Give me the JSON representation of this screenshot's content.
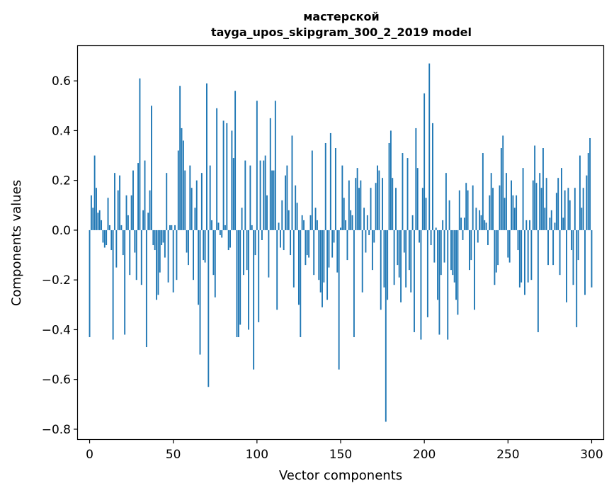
{
  "chart_data": {
    "type": "bar",
    "title": "мастерской",
    "subtitle": "tayga_upos_skipgram_300_2_2019 model",
    "xlabel": "Vector components",
    "ylabel": "Components values",
    "xlim": [
      -7,
      307
    ],
    "ylim": [
      -0.84,
      0.74
    ],
    "xticks": [
      0,
      50,
      100,
      150,
      200,
      250,
      300
    ],
    "yticks": [
      -0.8,
      -0.6,
      -0.4,
      -0.2,
      0.0,
      0.2,
      0.4,
      0.6
    ],
    "ytick_labels": [
      "−0.8",
      "−0.6",
      "−0.4",
      "−0.2",
      "0.0",
      "0.2",
      "0.4",
      "0.6"
    ],
    "bar_color": "#1f77b4",
    "grid": false,
    "values": [
      -0.43,
      0.14,
      0.09,
      0.3,
      0.17,
      0.07,
      0.08,
      0.04,
      -0.05,
      -0.07,
      -0.06,
      0.13,
      0.02,
      -0.08,
      -0.44,
      0.23,
      -0.15,
      0.16,
      0.22,
      0.02,
      -0.1,
      -0.42,
      0.14,
      0.06,
      -0.18,
      0.14,
      0.24,
      -0.09,
      -0.2,
      0.27,
      0.61,
      -0.22,
      0.08,
      0.28,
      -0.47,
      0.07,
      0.16,
      0.5,
      -0.06,
      -0.08,
      -0.28,
      -0.26,
      -0.17,
      -0.06,
      -0.05,
      -0.11,
      0.23,
      -0.21,
      0.02,
      0.02,
      -0.25,
      0.02,
      -0.2,
      0.32,
      0.58,
      0.41,
      0.36,
      0.24,
      -0.09,
      -0.14,
      0.26,
      0.17,
      -0.2,
      0.09,
      0.2,
      -0.3,
      -0.5,
      0.23,
      -0.12,
      -0.13,
      0.59,
      -0.63,
      0.26,
      0.04,
      -0.18,
      -0.27,
      0.49,
      0.03,
      -0.02,
      -0.03,
      0.44,
      0.02,
      0.43,
      -0.08,
      -0.07,
      0.4,
      0.29,
      0.56,
      -0.43,
      -0.43,
      -0.38,
      0.09,
      -0.18,
      0.28,
      -0.16,
      -0.4,
      0.26,
      0.02,
      -0.56,
      -0.1,
      0.52,
      -0.37,
      0.28,
      -0.04,
      0.28,
      0.3,
      0.14,
      -0.19,
      0.45,
      0.24,
      0.24,
      0.52,
      -0.32,
      0.03,
      -0.07,
      0.12,
      -0.08,
      0.22,
      0.26,
      0.08,
      -0.1,
      0.38,
      -0.23,
      0.18,
      0.11,
      -0.3,
      -0.43,
      0.06,
      0.04,
      -0.14,
      -0.1,
      -0.11,
      0.06,
      0.32,
      -0.18,
      0.09,
      0.04,
      -0.2,
      -0.25,
      -0.31,
      -0.21,
      0.35,
      -0.28,
      -0.15,
      0.39,
      -0.11,
      -0.05,
      0.33,
      -0.17,
      -0.56,
      0.01,
      0.26,
      0.13,
      0.04,
      -0.12,
      0.2,
      0.08,
      0.06,
      -0.43,
      0.21,
      0.25,
      0.17,
      0.2,
      -0.25,
      0.09,
      -0.09,
      0.06,
      -0.02,
      0.17,
      -0.16,
      -0.05,
      0.19,
      0.26,
      0.24,
      -0.32,
      0.21,
      -0.23,
      -0.77,
      -0.28,
      0.35,
      0.4,
      0.21,
      -0.22,
      0.17,
      -0.14,
      -0.19,
      -0.29,
      0.31,
      -0.09,
      -0.23,
      0.29,
      -0.16,
      -0.25,
      0.06,
      -0.41,
      0.41,
      0.25,
      -0.05,
      -0.44,
      0.17,
      0.55,
      0.13,
      -0.35,
      0.67,
      -0.06,
      0.43,
      -0.13,
      0.01,
      -0.28,
      -0.42,
      -0.18,
      0.04,
      -0.13,
      0.23,
      -0.44,
      0.12,
      -0.16,
      -0.18,
      -0.21,
      -0.28,
      -0.34,
      0.16,
      0.05,
      -0.04,
      0.05,
      0.19,
      0.16,
      -0.16,
      -0.12,
      0.18,
      -0.32,
      0.09,
      -0.05,
      0.08,
      0.06,
      0.31,
      0.04,
      0.03,
      -0.06,
      0.14,
      0.23,
      0.17,
      -0.22,
      -0.17,
      -0.14,
      0.18,
      0.33,
      0.38,
      0.13,
      0.23,
      -0.11,
      -0.13,
      0.2,
      0.14,
      0.09,
      0.14,
      -0.08,
      -0.23,
      -0.21,
      0.25,
      -0.26,
      0.04,
      -0.21,
      0.04,
      -0.2,
      0.2,
      0.34,
      0.19,
      -0.41,
      0.23,
      0.17,
      0.33,
      0.09,
      0.21,
      -0.14,
      0.05,
      0.08,
      -0.14,
      0.03,
      0.15,
      0.21,
      -0.18,
      0.25,
      0.05,
      0.16,
      -0.29,
      0.17,
      0.12,
      -0.08,
      -0.22,
      0.17,
      -0.39,
      -0.12,
      0.3,
      0.09,
      0.17,
      -0.26,
      0.22,
      0.31,
      0.37,
      -0.23
    ]
  }
}
